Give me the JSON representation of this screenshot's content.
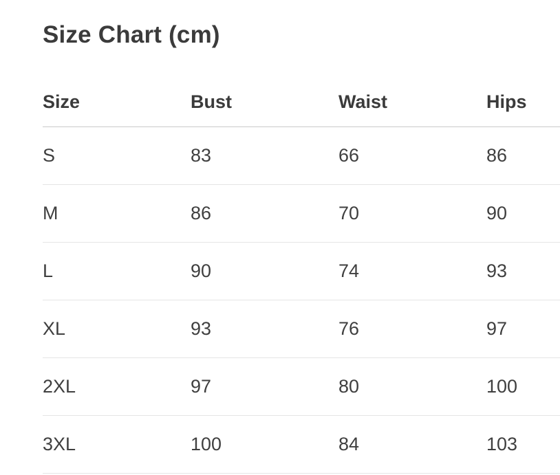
{
  "page": {
    "title": "Size Chart (cm)"
  },
  "table": {
    "columns": {
      "size": "Size",
      "bust": "Bust",
      "waist": "Waist",
      "hips": "Hips"
    },
    "rows": [
      {
        "size": "S",
        "bust": "83",
        "waist": "66",
        "hips": "86"
      },
      {
        "size": "M",
        "bust": "86",
        "waist": "70",
        "hips": "90"
      },
      {
        "size": "L",
        "bust": "90",
        "waist": "74",
        "hips": "93"
      },
      {
        "size": "XL",
        "bust": "93",
        "waist": "76",
        "hips": "97"
      },
      {
        "size": "2XL",
        "bust": "97",
        "waist": "80",
        "hips": "100"
      },
      {
        "size": "3XL",
        "bust": "100",
        "waist": "84",
        "hips": "103"
      }
    ]
  },
  "colors": {
    "background": "#ffffff",
    "text": "#3d3d3d",
    "header_divider": "#c9c9c9",
    "row_divider": "#e5e5e5"
  },
  "chart_data": {
    "type": "table",
    "title": "Size Chart (cm)",
    "columns": [
      "Size",
      "Bust",
      "Waist",
      "Hips"
    ],
    "rows": [
      [
        "S",
        83,
        66,
        86
      ],
      [
        "M",
        86,
        70,
        90
      ],
      [
        "L",
        90,
        74,
        93
      ],
      [
        "XL",
        93,
        76,
        97
      ],
      [
        "2XL",
        97,
        80,
        100
      ],
      [
        "3XL",
        100,
        84,
        103
      ]
    ],
    "units": "cm"
  }
}
